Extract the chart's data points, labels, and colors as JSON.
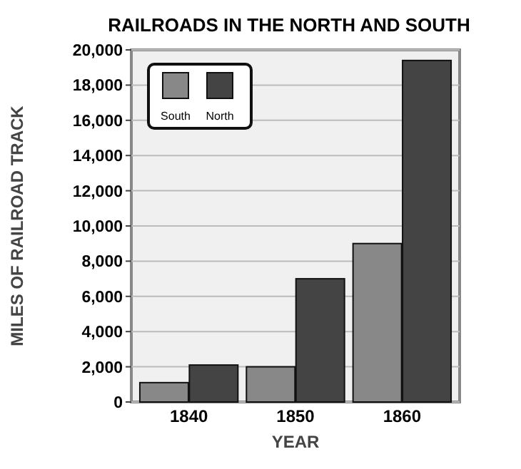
{
  "chart_data": {
    "type": "bar",
    "title": "RAILROADS IN THE NORTH AND SOUTH",
    "xlabel": "YEAR",
    "ylabel": "MILES OF RAILROAD TRACK",
    "categories": [
      "1840",
      "1850",
      "1860"
    ],
    "series": [
      {
        "name": "South",
        "color": "#888888",
        "values": [
          1100,
          2000,
          9000
        ]
      },
      {
        "name": "North",
        "color": "#444444",
        "values": [
          2100,
          7000,
          19400
        ]
      }
    ],
    "ylim": [
      0,
      20000
    ],
    "yticks": [
      {
        "value": 0,
        "label": "0"
      },
      {
        "value": 2000,
        "label": "2,000"
      },
      {
        "value": 4000,
        "label": "4,000"
      },
      {
        "value": 6000,
        "label": "6,000"
      },
      {
        "value": 8000,
        "label": "8,000"
      },
      {
        "value": 10000,
        "label": "10,000"
      },
      {
        "value": 12000,
        "label": "12,000"
      },
      {
        "value": 14000,
        "label": "14,000"
      },
      {
        "value": 16000,
        "label": "16,000"
      },
      {
        "value": 18000,
        "label": "18,000"
      },
      {
        "value": 20000,
        "label": "20,000"
      }
    ],
    "grid": "y",
    "legend": "top left"
  }
}
